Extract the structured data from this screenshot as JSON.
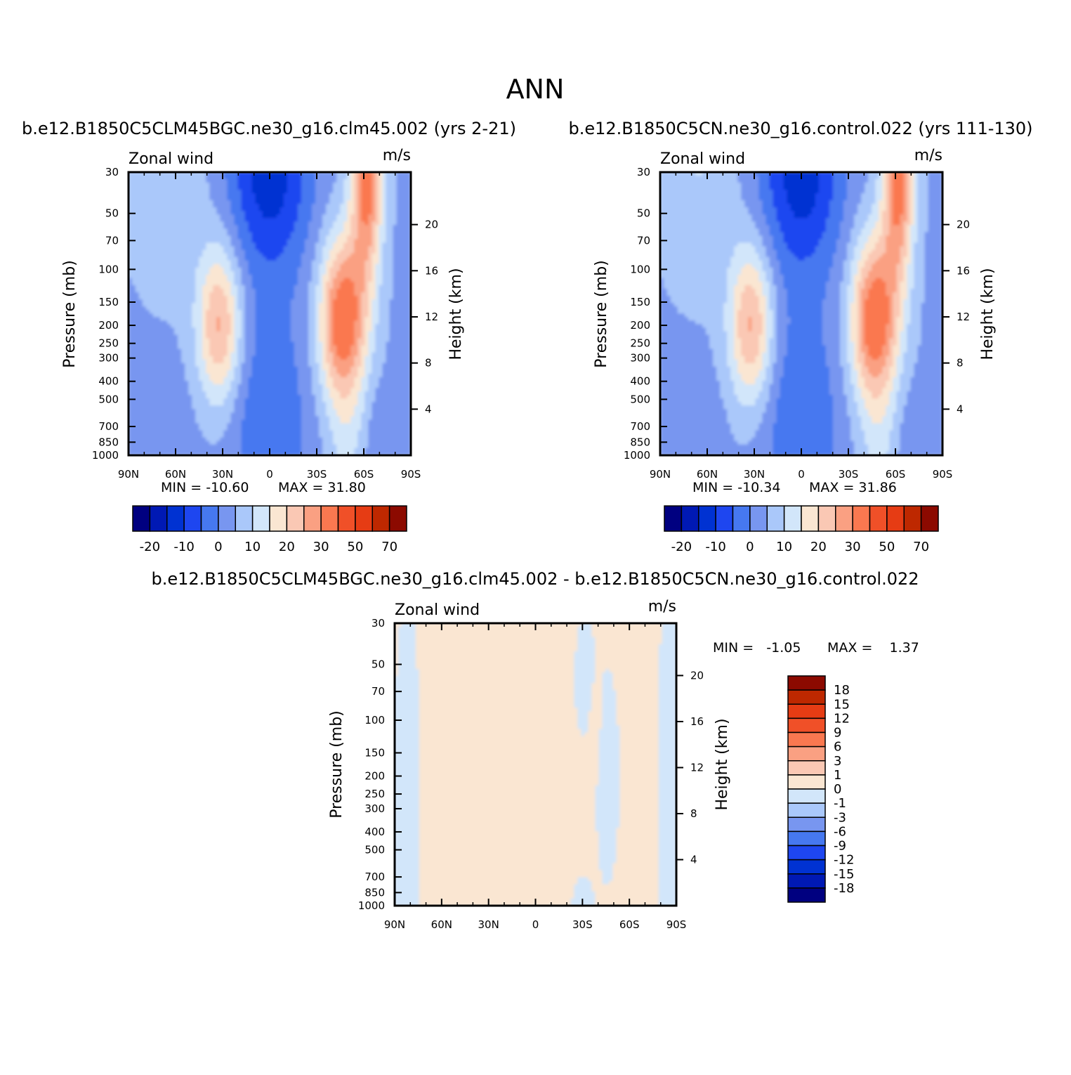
{
  "figure": {
    "title": "ANN"
  },
  "legend_colors": {
    "absolute": [
      "#000080",
      "#0019b4",
      "#0032d2",
      "#1e46f0",
      "#4678f0",
      "#7896f0",
      "#aac8fa",
      "#d2e6fa",
      "#fae6d2",
      "#fac8b4",
      "#faa082",
      "#fa7850",
      "#f05028",
      "#e63c14",
      "#be2800",
      "#8c0a00"
    ],
    "difference": [
      "#000080",
      "#0019b4",
      "#0032d2",
      "#1e46f0",
      "#4678f0",
      "#7896f0",
      "#aac8fa",
      "#d2e6fa",
      "#fae6d2",
      "#fac8b4",
      "#faa082",
      "#fa7850",
      "#f05028",
      "#e63c14",
      "#be2800",
      "#8c0a00"
    ]
  },
  "chart_data": [
    {
      "type": "heatmap",
      "title": "b.e12.B1850C5CLM45BGC.ne30_g16.clm45.002 (yrs 2-21)",
      "left_string": "Zonal wind",
      "right_string": "m/s",
      "ylabel": "Pressure (mb)",
      "ylabel_right": "Height (km)",
      "xticks": [
        "90N",
        "60N",
        "30N",
        "0",
        "30S",
        "60S",
        "90S"
      ],
      "yticks": [
        "30",
        "50",
        "70",
        "100",
        "150",
        "200",
        "250",
        "300",
        "400",
        "500",
        "700",
        "850",
        "1000"
      ],
      "yticks_right": [
        "20",
        "16",
        "12",
        "8",
        "4"
      ],
      "min_label": "MIN = -10.60",
      "max_label": "MAX = 31.80",
      "min": -10.6,
      "max": 31.8,
      "colorbar_labels": [
        "-20",
        "-10",
        "0",
        "10",
        "20",
        "30",
        "50",
        "70"
      ],
      "colorbar_levels": [
        -25,
        -20,
        -15,
        -10,
        -5,
        0,
        5,
        10,
        15,
        20,
        25,
        30,
        40,
        50,
        60,
        70,
        80
      ]
    },
    {
      "type": "heatmap",
      "title": "b.e12.B1850C5CN.ne30_g16.control.022 (yrs 111-130)",
      "left_string": "Zonal wind",
      "right_string": "m/s",
      "ylabel": "Pressure (mb)",
      "ylabel_right": "Height (km)",
      "xticks": [
        "90N",
        "60N",
        "30N",
        "0",
        "30S",
        "60S",
        "90S"
      ],
      "yticks": [
        "30",
        "50",
        "70",
        "100",
        "150",
        "200",
        "250",
        "300",
        "400",
        "500",
        "700",
        "850",
        "1000"
      ],
      "yticks_right": [
        "20",
        "16",
        "12",
        "8",
        "4"
      ],
      "min_label": "MIN = -10.34",
      "max_label": "MAX = 31.86",
      "min": -10.34,
      "max": 31.86,
      "colorbar_labels": [
        "-20",
        "-10",
        "0",
        "10",
        "20",
        "30",
        "50",
        "70"
      ],
      "colorbar_levels": [
        -25,
        -20,
        -15,
        -10,
        -5,
        0,
        5,
        10,
        15,
        20,
        25,
        30,
        40,
        50,
        60,
        70,
        80
      ]
    },
    {
      "type": "heatmap",
      "title": "b.e12.B1850C5CLM45BGC.ne30_g16.clm45.002 - b.e12.B1850C5CN.ne30_g16.control.022",
      "left_string": "Zonal wind",
      "right_string": "m/s",
      "ylabel": "Pressure (mb)",
      "ylabel_right": "Height (km)",
      "xticks": [
        "90N",
        "60N",
        "30N",
        "0",
        "30S",
        "60S",
        "90S"
      ],
      "yticks": [
        "30",
        "50",
        "70",
        "100",
        "150",
        "200",
        "250",
        "300",
        "400",
        "500",
        "700",
        "850",
        "1000"
      ],
      "yticks_right": [
        "20",
        "16",
        "12",
        "8",
        "4"
      ],
      "min_label": "MIN =   -1.05",
      "max_label": "MAX =    1.37",
      "min": -1.05,
      "max": 1.37,
      "colorbar_labels": [
        "18",
        "15",
        "12",
        "9",
        "6",
        "3",
        "1",
        "0",
        "-1",
        "-3",
        "-6",
        "-9",
        "-12",
        "-15",
        "-18"
      ],
      "colorbar_levels": [
        -21,
        -18,
        -15,
        -12,
        -9,
        -6,
        -3,
        -1,
        0,
        1,
        3,
        6,
        9,
        12,
        15,
        18,
        21
      ]
    }
  ]
}
